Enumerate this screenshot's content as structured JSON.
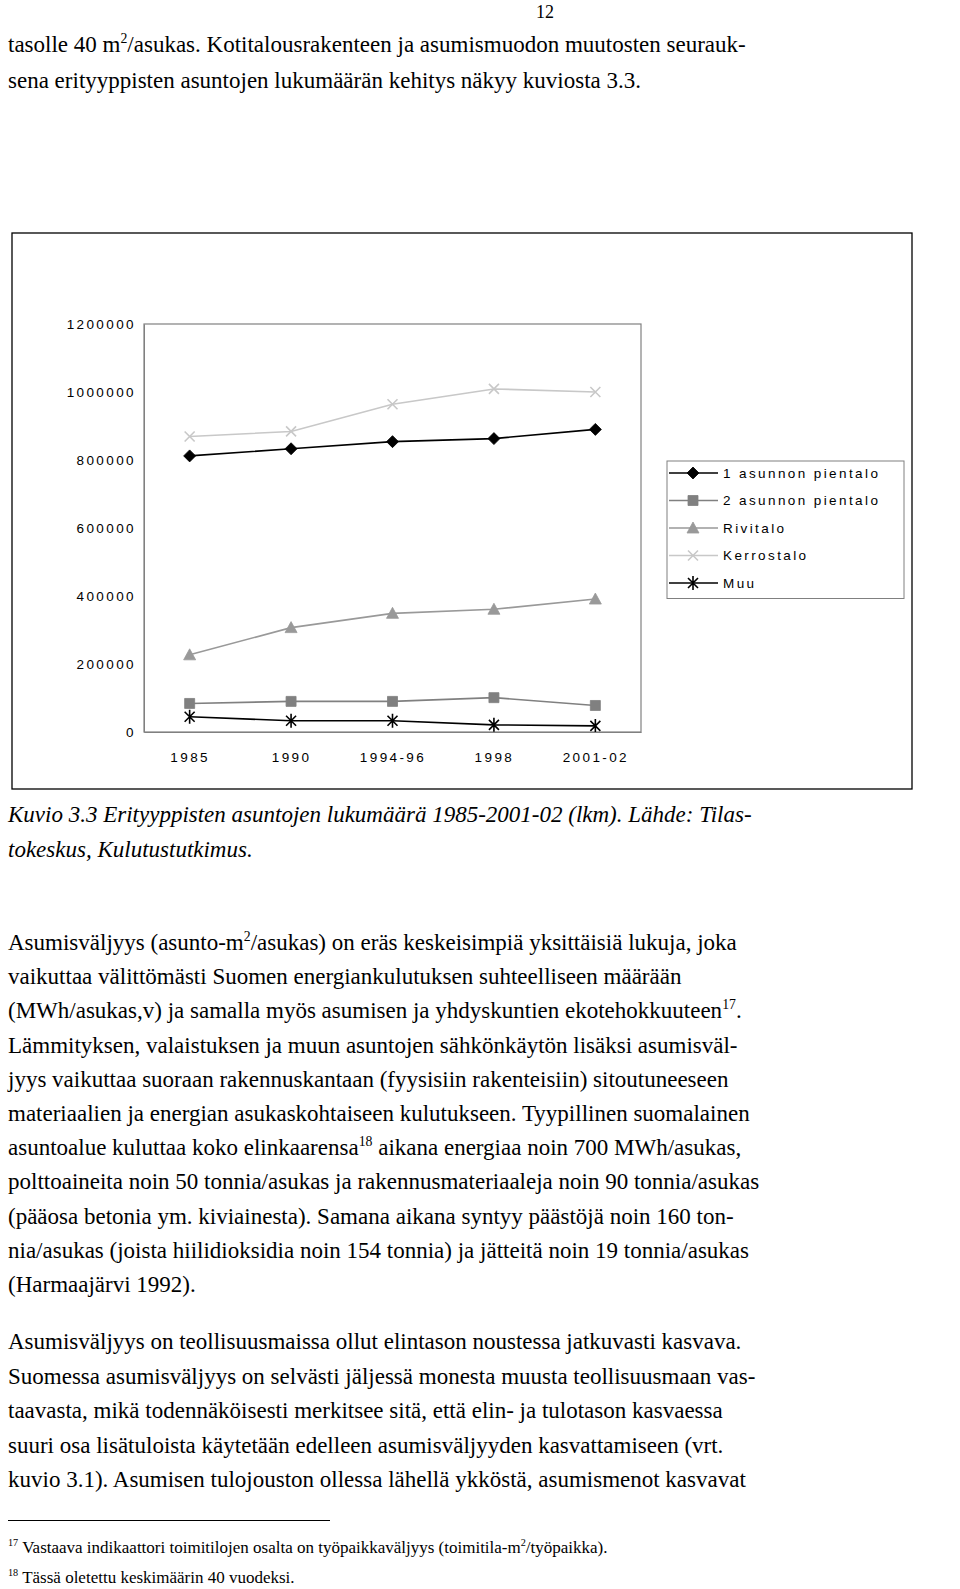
{
  "page_number": "12",
  "paragraphs": [
    [
      [
        "tasolle 40 m",
        {
          "sup": "2"
        },
        "/asukas. Kotitalousrakenteen ja asumismuodon muutosten seurauk-"
      ],
      [
        "sena erityyppisten asuntojen lukumäärän kehitys näkyy kuviosta 3.3."
      ]
    ],
    [
      [
        "Asumisväljyys (asunto-m",
        {
          "sup": "2"
        },
        "/asukas) on eräs keskeisimpiä yksittäisiä lukuja, joka"
      ],
      [
        "vaikuttaa välittömästi Suomen energiankulutuksen suhteelliseen määrään"
      ],
      [
        "(MWh/asukas,v) ja samalla myös asumisen ja yhdyskuntien ekotehokkuuteen",
        {
          "sup": "17"
        },
        "."
      ],
      [
        "Lämmityksen, valaistuksen ja muun asuntojen sähkönkäytön lisäksi asumisväl-"
      ],
      [
        "jyys vaikuttaa suoraan rakennuskantaan (fyysisiin rakenteisiin) sitoutuneeseen"
      ],
      [
        "materiaalien ja energian asukaskohtaiseen kulutukseen. Tyypillinen suomalainen"
      ],
      [
        "asuntoalue kuluttaa koko elinkaarensa",
        {
          "sup": "18"
        },
        " aikana energiaa noin 700 MWh/asukas,"
      ],
      [
        "polttoaineita noin 50 tonnia/asukas ja rakennusmateriaaleja noin 90 tonnia/asukas"
      ],
      [
        "(pääosa betonia ym. kiviainesta). Samana aikana syntyy päästöjä noin 160 ton-"
      ],
      [
        "nia/asukas (joista hiilidioksidia noin 154 tonnia) ja jätteitä noin 19 tonnia/asukas"
      ],
      [
        "(Harmaajärvi 1992)."
      ]
    ],
    [
      [
        "Asumisväljyys on teollisuusmaissa ollut elintason noustessa jatkuvasti kasvava."
      ],
      [
        "Suomessa asumisväljyys on selvästi jäljessä monesta muusta teollisuusmaan vas-"
      ],
      [
        "taavasta, mikä todennäköisesti merkitsee sitä, että elin- ja tulotason kasvaessa"
      ],
      [
        "suuri osa lisätuloista käytetään edelleen asumisväljyyden kasvattamiseen (vrt."
      ],
      [
        "kuvio 3.1). Asumisen tulojouston ollessa lähellä ykköstä, asumismenot kasvavat"
      ]
    ]
  ],
  "caption": [
    [
      "Kuvio 3.3 Erityyppisten asuntojen lukumäärä 1985-2001-02 (lkm). Lähde: Tilas-"
    ],
    [
      "tokeskus, Kulutustutkimus."
    ]
  ],
  "footnotes": [
    [
      {
        "sup": "17"
      },
      "Vastaava indikaattori toimitilojen osalta on työpaikkaväljyys (toimitila-m",
      {
        "sup": "2"
      },
      "/työpaikka)."
    ],
    [
      {
        "sup": "18"
      },
      "Tässä oletettu keskimäärin 40 vuodeksi."
    ]
  ],
  "chart_data": {
    "type": "line",
    "categories": [
      "1985",
      "1990",
      "1994-96",
      "1998",
      "2001-02"
    ],
    "series": [
      {
        "name": "1 asunnon pientalo",
        "color": "#000000",
        "marker": "diamond",
        "values": [
          812000,
          833000,
          854000,
          863000,
          890000
        ]
      },
      {
        "name": "2 asunnon pientalo",
        "color": "#808080",
        "marker": "square",
        "values": [
          84000,
          90000,
          90000,
          101000,
          78000
        ]
      },
      {
        "name": "Rivitalo",
        "color": "#999999",
        "marker": "triangle",
        "values": [
          227000,
          307000,
          349000,
          361000,
          391000
        ]
      },
      {
        "name": "Kerrostalo",
        "color": "#c8c8c8",
        "marker": "x",
        "values": [
          869000,
          884000,
          964000,
          1009000,
          1000000
        ]
      },
      {
        "name": "Muu",
        "color": "#000000",
        "marker": "asterisk",
        "values": [
          45000,
          33000,
          33000,
          21000,
          18000
        ]
      }
    ],
    "ylim": [
      0,
      1200000
    ],
    "yticks": [
      0,
      200000,
      400000,
      600000,
      800000,
      1000000,
      1200000
    ],
    "grid": false,
    "legend": "right"
  }
}
